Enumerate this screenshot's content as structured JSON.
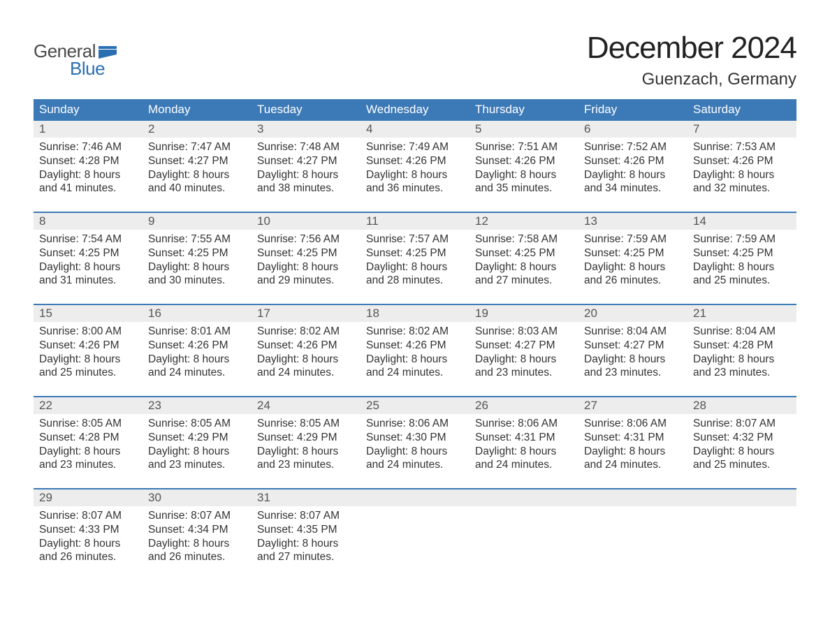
{
  "colors": {
    "header_bg": "#3b79b7",
    "header_fg": "#ffffff",
    "daynum_bg": "#ededed",
    "daynum_fg": "#555555",
    "body_fg": "#333333",
    "week_border": "#3b79b7",
    "logo_blue": "#2b6fb3",
    "logo_gray": "#4a4a4a",
    "page_bg": "#ffffff"
  },
  "logo": {
    "word1": "General",
    "word2": "Blue"
  },
  "title": "December 2024",
  "location": "Guenzach, Germany",
  "day_headers": [
    "Sunday",
    "Monday",
    "Tuesday",
    "Wednesday",
    "Thursday",
    "Friday",
    "Saturday"
  ],
  "weeks": [
    [
      {
        "n": "1",
        "sunrise": "Sunrise: 7:46 AM",
        "sunset": "Sunset: 4:28 PM",
        "d1": "Daylight: 8 hours",
        "d2": "and 41 minutes."
      },
      {
        "n": "2",
        "sunrise": "Sunrise: 7:47 AM",
        "sunset": "Sunset: 4:27 PM",
        "d1": "Daylight: 8 hours",
        "d2": "and 40 minutes."
      },
      {
        "n": "3",
        "sunrise": "Sunrise: 7:48 AM",
        "sunset": "Sunset: 4:27 PM",
        "d1": "Daylight: 8 hours",
        "d2": "and 38 minutes."
      },
      {
        "n": "4",
        "sunrise": "Sunrise: 7:49 AM",
        "sunset": "Sunset: 4:26 PM",
        "d1": "Daylight: 8 hours",
        "d2": "and 36 minutes."
      },
      {
        "n": "5",
        "sunrise": "Sunrise: 7:51 AM",
        "sunset": "Sunset: 4:26 PM",
        "d1": "Daylight: 8 hours",
        "d2": "and 35 minutes."
      },
      {
        "n": "6",
        "sunrise": "Sunrise: 7:52 AM",
        "sunset": "Sunset: 4:26 PM",
        "d1": "Daylight: 8 hours",
        "d2": "and 34 minutes."
      },
      {
        "n": "7",
        "sunrise": "Sunrise: 7:53 AM",
        "sunset": "Sunset: 4:26 PM",
        "d1": "Daylight: 8 hours",
        "d2": "and 32 minutes."
      }
    ],
    [
      {
        "n": "8",
        "sunrise": "Sunrise: 7:54 AM",
        "sunset": "Sunset: 4:25 PM",
        "d1": "Daylight: 8 hours",
        "d2": "and 31 minutes."
      },
      {
        "n": "9",
        "sunrise": "Sunrise: 7:55 AM",
        "sunset": "Sunset: 4:25 PM",
        "d1": "Daylight: 8 hours",
        "d2": "and 30 minutes."
      },
      {
        "n": "10",
        "sunrise": "Sunrise: 7:56 AM",
        "sunset": "Sunset: 4:25 PM",
        "d1": "Daylight: 8 hours",
        "d2": "and 29 minutes."
      },
      {
        "n": "11",
        "sunrise": "Sunrise: 7:57 AM",
        "sunset": "Sunset: 4:25 PM",
        "d1": "Daylight: 8 hours",
        "d2": "and 28 minutes."
      },
      {
        "n": "12",
        "sunrise": "Sunrise: 7:58 AM",
        "sunset": "Sunset: 4:25 PM",
        "d1": "Daylight: 8 hours",
        "d2": "and 27 minutes."
      },
      {
        "n": "13",
        "sunrise": "Sunrise: 7:59 AM",
        "sunset": "Sunset: 4:25 PM",
        "d1": "Daylight: 8 hours",
        "d2": "and 26 minutes."
      },
      {
        "n": "14",
        "sunrise": "Sunrise: 7:59 AM",
        "sunset": "Sunset: 4:25 PM",
        "d1": "Daylight: 8 hours",
        "d2": "and 25 minutes."
      }
    ],
    [
      {
        "n": "15",
        "sunrise": "Sunrise: 8:00 AM",
        "sunset": "Sunset: 4:26 PM",
        "d1": "Daylight: 8 hours",
        "d2": "and 25 minutes."
      },
      {
        "n": "16",
        "sunrise": "Sunrise: 8:01 AM",
        "sunset": "Sunset: 4:26 PM",
        "d1": "Daylight: 8 hours",
        "d2": "and 24 minutes."
      },
      {
        "n": "17",
        "sunrise": "Sunrise: 8:02 AM",
        "sunset": "Sunset: 4:26 PM",
        "d1": "Daylight: 8 hours",
        "d2": "and 24 minutes."
      },
      {
        "n": "18",
        "sunrise": "Sunrise: 8:02 AM",
        "sunset": "Sunset: 4:26 PM",
        "d1": "Daylight: 8 hours",
        "d2": "and 24 minutes."
      },
      {
        "n": "19",
        "sunrise": "Sunrise: 8:03 AM",
        "sunset": "Sunset: 4:27 PM",
        "d1": "Daylight: 8 hours",
        "d2": "and 23 minutes."
      },
      {
        "n": "20",
        "sunrise": "Sunrise: 8:04 AM",
        "sunset": "Sunset: 4:27 PM",
        "d1": "Daylight: 8 hours",
        "d2": "and 23 minutes."
      },
      {
        "n": "21",
        "sunrise": "Sunrise: 8:04 AM",
        "sunset": "Sunset: 4:28 PM",
        "d1": "Daylight: 8 hours",
        "d2": "and 23 minutes."
      }
    ],
    [
      {
        "n": "22",
        "sunrise": "Sunrise: 8:05 AM",
        "sunset": "Sunset: 4:28 PM",
        "d1": "Daylight: 8 hours",
        "d2": "and 23 minutes."
      },
      {
        "n": "23",
        "sunrise": "Sunrise: 8:05 AM",
        "sunset": "Sunset: 4:29 PM",
        "d1": "Daylight: 8 hours",
        "d2": "and 23 minutes."
      },
      {
        "n": "24",
        "sunrise": "Sunrise: 8:05 AM",
        "sunset": "Sunset: 4:29 PM",
        "d1": "Daylight: 8 hours",
        "d2": "and 23 minutes."
      },
      {
        "n": "25",
        "sunrise": "Sunrise: 8:06 AM",
        "sunset": "Sunset: 4:30 PM",
        "d1": "Daylight: 8 hours",
        "d2": "and 24 minutes."
      },
      {
        "n": "26",
        "sunrise": "Sunrise: 8:06 AM",
        "sunset": "Sunset: 4:31 PM",
        "d1": "Daylight: 8 hours",
        "d2": "and 24 minutes."
      },
      {
        "n": "27",
        "sunrise": "Sunrise: 8:06 AM",
        "sunset": "Sunset: 4:31 PM",
        "d1": "Daylight: 8 hours",
        "d2": "and 24 minutes."
      },
      {
        "n": "28",
        "sunrise": "Sunrise: 8:07 AM",
        "sunset": "Sunset: 4:32 PM",
        "d1": "Daylight: 8 hours",
        "d2": "and 25 minutes."
      }
    ],
    [
      {
        "n": "29",
        "sunrise": "Sunrise: 8:07 AM",
        "sunset": "Sunset: 4:33 PM",
        "d1": "Daylight: 8 hours",
        "d2": "and 26 minutes."
      },
      {
        "n": "30",
        "sunrise": "Sunrise: 8:07 AM",
        "sunset": "Sunset: 4:34 PM",
        "d1": "Daylight: 8 hours",
        "d2": "and 26 minutes."
      },
      {
        "n": "31",
        "sunrise": "Sunrise: 8:07 AM",
        "sunset": "Sunset: 4:35 PM",
        "d1": "Daylight: 8 hours",
        "d2": "and 27 minutes."
      },
      {
        "empty": true
      },
      {
        "empty": true
      },
      {
        "empty": true
      },
      {
        "empty": true
      }
    ]
  ]
}
